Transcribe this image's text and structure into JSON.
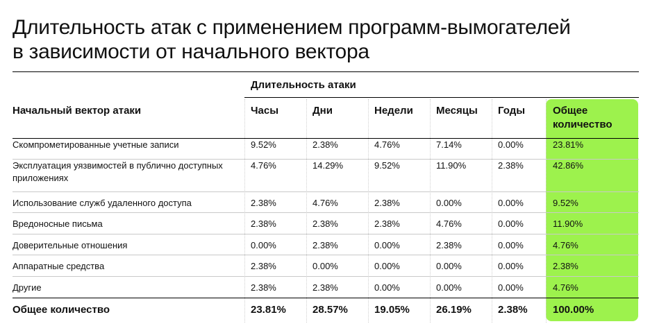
{
  "title_lines": [
    "Длительность атак с применением программ-вымогателей",
    "в зависимости от начального вектора"
  ],
  "chart_data": {
    "type": "table",
    "group_header": "Длительность атаки",
    "row_header": "Начальный вектор атаки",
    "columns": [
      "Часы",
      "Дни",
      "Недели",
      "Месяцы",
      "Годы"
    ],
    "total_column_lines": [
      "Общее",
      "количество"
    ],
    "rows": [
      {
        "label": "Скомпрометированные учетные записи",
        "values": [
          "9.52%",
          "2.38%",
          "4.76%",
          "7.14%",
          "0.00%"
        ],
        "total": "23.81%"
      },
      {
        "label": "Эксплуатация уязвимостей в публично доступных приложениях",
        "values": [
          "4.76%",
          "14.29%",
          "9.52%",
          "11.90%",
          "2.38%"
        ],
        "total": "42.86%"
      },
      {
        "label": "Использование служб удаленного доступа",
        "values": [
          "2.38%",
          "4.76%",
          "2.38%",
          "0.00%",
          "0.00%"
        ],
        "total": "9.52%"
      },
      {
        "label": "Вредоносные письма",
        "values": [
          "2.38%",
          "2.38%",
          "2.38%",
          "4.76%",
          "0.00%"
        ],
        "total": "11.90%"
      },
      {
        "label": "Доверительные отношения",
        "values": [
          "0.00%",
          "2.38%",
          "0.00%",
          "2.38%",
          "0.00%"
        ],
        "total": "4.76%"
      },
      {
        "label": "Аппаратные средства",
        "values": [
          "2.38%",
          "0.00%",
          "0.00%",
          "0.00%",
          "0.00%"
        ],
        "total": "2.38%"
      },
      {
        "label": "Другие",
        "values": [
          "2.38%",
          "2.38%",
          "0.00%",
          "0.00%",
          "0.00%"
        ],
        "total": "4.76%"
      }
    ],
    "totals_row": {
      "label": "Общее количество",
      "values": [
        "23.81%",
        "28.57%",
        "19.05%",
        "26.19%",
        "2.38%"
      ],
      "total": "100.00%"
    }
  },
  "colors": {
    "highlight": "#9df24d",
    "text": "#111111"
  }
}
